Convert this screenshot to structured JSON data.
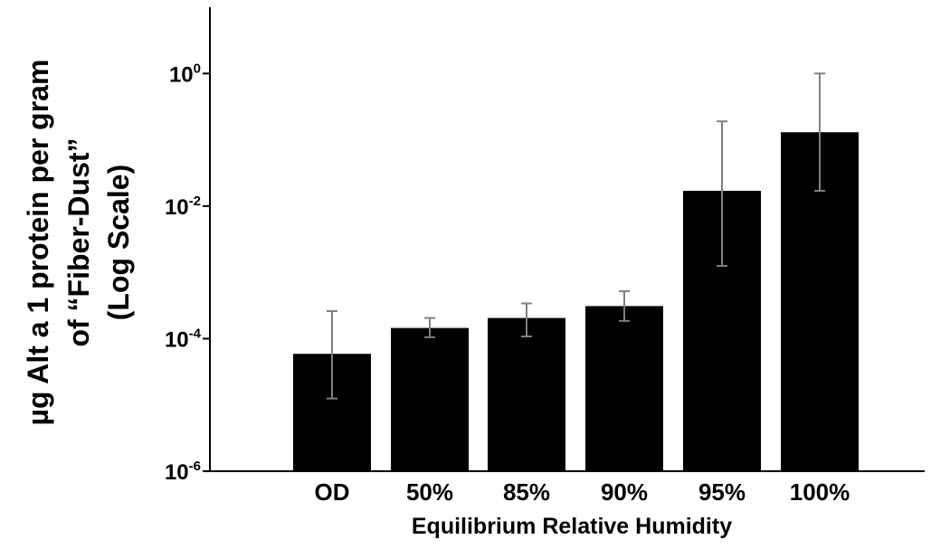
{
  "chart_data": {
    "type": "bar",
    "categories": [
      "OD",
      "50%",
      "85%",
      "90%",
      "95%",
      "100%"
    ],
    "values": [
      5.9e-05,
      0.000145,
      0.000205,
      0.00031,
      0.017,
      0.13
    ],
    "error_low": [
      1.25e-05,
      0.000105,
      0.000108,
      0.000185,
      0.00125,
      0.017
    ],
    "error_high": [
      0.00026,
      0.000205,
      0.00034,
      0.00052,
      0.19,
      1.0
    ],
    "y_scale": "log",
    "ylim": [
      1e-06,
      10
    ],
    "yticks": [
      {
        "value": 1e-06,
        "base": "10",
        "exp": "-6"
      },
      {
        "value": 0.0001,
        "base": "10",
        "exp": "-4"
      },
      {
        "value": 0.01,
        "base": "10",
        "exp": "-2"
      },
      {
        "value": 1,
        "base": "10",
        "exp": "0"
      }
    ],
    "xlabel": "Equilibrium Relative Humidity",
    "ylabel_lines": [
      "µg  Alt a 1 protein per gram",
      "of “Fiber-Dust”",
      "(Log Scale)"
    ],
    "bar_color": "#000000",
    "error_bar_color": "#808080",
    "grid": false,
    "legend": "none"
  }
}
